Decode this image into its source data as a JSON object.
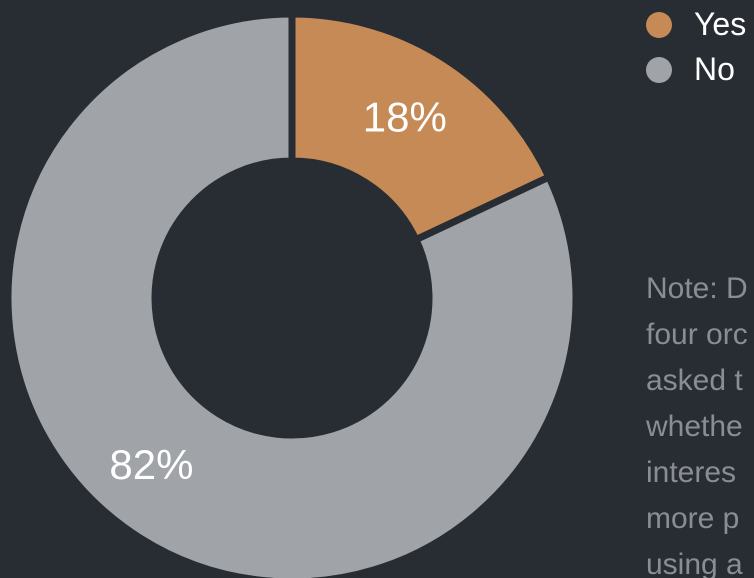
{
  "chart_data": {
    "type": "pie",
    "donut": true,
    "categories": [
      "Yes",
      "No"
    ],
    "values": [
      18,
      82
    ],
    "value_labels": [
      "18%",
      "82%"
    ],
    "colors": [
      "#c58a55",
      "#a0a4a9"
    ],
    "legend_position": "top-right",
    "title": "",
    "xlabel": "",
    "ylabel": ""
  },
  "legend": {
    "items": [
      {
        "label": "Yes",
        "color": "#c58a55"
      },
      {
        "label": "No",
        "color": "#a0a4a9"
      }
    ]
  },
  "note": {
    "lines": [
      "Note: D",
      "four orc",
      "asked t",
      "whethe",
      "interes",
      "more p",
      "using a"
    ]
  },
  "theme": {
    "background": "#282d34",
    "note_color": "#8a8d91"
  }
}
